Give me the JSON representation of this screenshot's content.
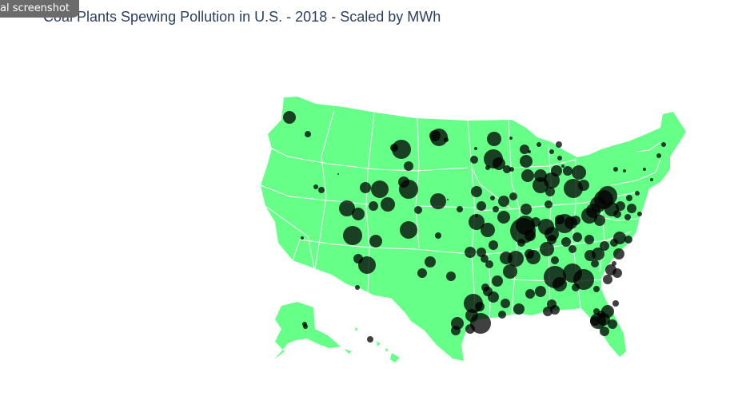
{
  "header": {
    "badge_text": "al screenshot",
    "title": "Coal Plants Spewing Pollution in U.S. - 2018 - Scaled by MWh"
  },
  "map": {
    "land_color": "#66ff88",
    "border_color": "#ffffff",
    "marker_color": "#000000",
    "marker_opacity": 0.75
  }
}
